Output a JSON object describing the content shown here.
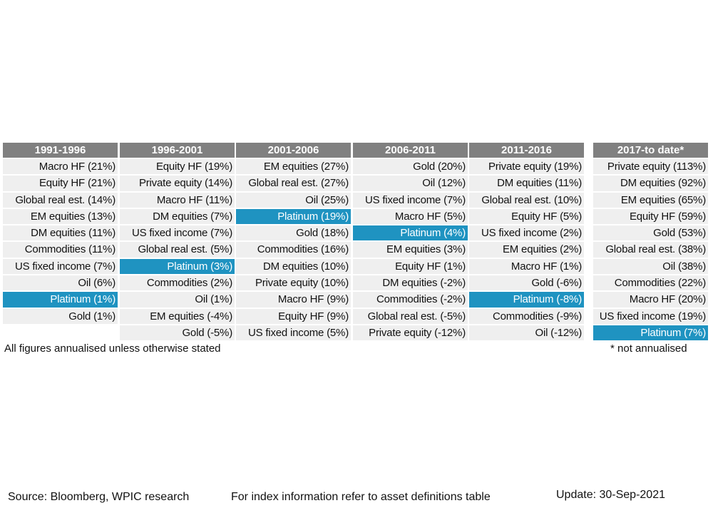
{
  "chart_data": {
    "type": "table",
    "highlight_color": "#1f93c1",
    "header_color": "#808080",
    "columns": [
      {
        "header": "1991-1996",
        "rows": [
          "Macro HF (21%)",
          "Equity HF (21%)",
          "Global real est. (14%)",
          "EM equities (13%)",
          "DM equities (11%)",
          "Commodities (11%)",
          "US fixed income (7%)",
          "Oil (6%)",
          "Platinum (1%)",
          "Gold (1%)",
          ""
        ]
      },
      {
        "header": "1996-2001",
        "rows": [
          "Equity HF (19%)",
          "Private equity (14%)",
          "Macro HF (11%)",
          "DM equities (7%)",
          "US fixed income (7%)",
          "Global real est. (5%)",
          "Platinum (3%)",
          "Commodities (2%)",
          "Oil (1%)",
          "EM equities (-4%)",
          "Gold (-5%)"
        ]
      },
      {
        "header": "2001-2006",
        "rows": [
          "EM equities (27%)",
          "Global real est. (27%)",
          "Oil (25%)",
          "Platinum (19%)",
          "Gold (18%)",
          "Commodities (16%)",
          "DM equities (10%)",
          "Private equity (10%)",
          "Macro HF (9%)",
          "Equity HF (9%)",
          "US fixed income (5%)"
        ]
      },
      {
        "header": "2006-2011",
        "rows": [
          "Gold (20%)",
          "Oil (12%)",
          "US fixed income (7%)",
          "Macro HF (5%)",
          "Platinum (4%)",
          "EM equities (3%)",
          "Equity HF (1%)",
          "DM equities (-2%)",
          "Commodities (-2%)",
          "Global real est. (-5%)",
          "Private equity (-12%)"
        ]
      },
      {
        "header": "2011-2016",
        "rows": [
          "Private equity (19%)",
          "DM equities (11%)",
          "Global real est. (10%)",
          "Equity HF (5%)",
          "US fixed income (2%)",
          "EM equities (2%)",
          "Macro HF (1%)",
          "Gold (-6%)",
          "Platinum (-8%)",
          "Commodities (-9%)",
          "Oil (-12%)"
        ]
      },
      {
        "header": "2017-to date*",
        "rows": [
          "Private equity (113%)",
          "DM equities (92%)",
          "EM equities (65%)",
          "Equity HF (59%)",
          "Gold (53%)",
          "Global real est. (38%)",
          "Oil (38%)",
          "Commodities (22%)",
          "Macro HF (20%)",
          "US fixed income (19%)",
          "Platinum (7%)"
        ]
      }
    ],
    "highlight_label": "Platinum"
  },
  "notes": {
    "left": "All figures annualised unless otherwise stated",
    "right": "* not annualised"
  },
  "footer": {
    "source": "Source: Bloomberg, WPIC research",
    "index_info": "For index information refer to asset definitions table",
    "update": "Update: 30-Sep-2021"
  }
}
